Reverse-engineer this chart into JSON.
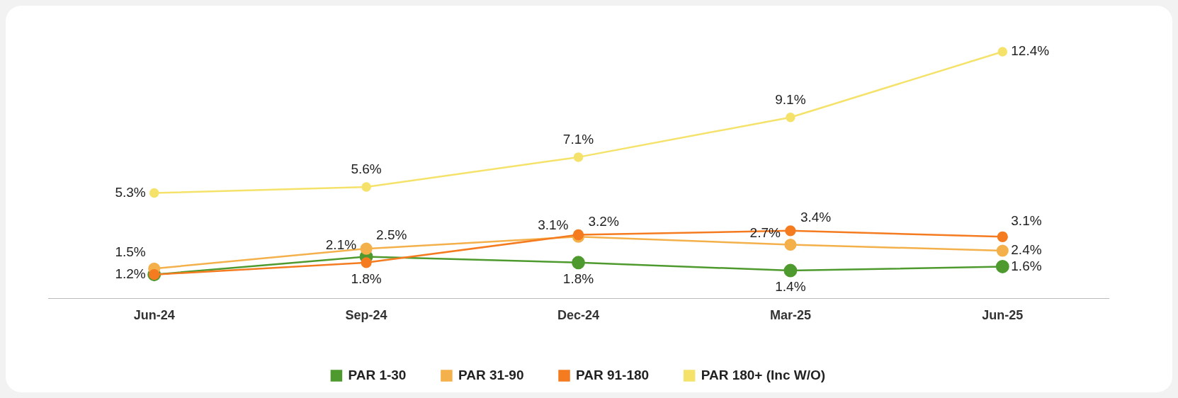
{
  "chart_data": {
    "type": "line",
    "categories": [
      "Jun-24",
      "Sep-24",
      "Dec-24",
      "Mar-25",
      "Jun-25"
    ],
    "series": [
      {
        "name": "PAR 1-30",
        "color": "#4e9a2f",
        "values": [
          1.2,
          2.1,
          1.8,
          1.4,
          1.6
        ],
        "value_labels": [
          "1.2%",
          "2.1%",
          "1.8%",
          "1.4%",
          "1.6%"
        ]
      },
      {
        "name": "PAR 31-90",
        "color": "#f4b04a",
        "values": [
          1.5,
          2.5,
          3.1,
          2.7,
          2.4
        ],
        "value_labels": [
          "1.5%",
          "2.5%",
          "3.1%",
          "2.7%",
          "2.4%"
        ]
      },
      {
        "name": "PAR 91-180",
        "color": "#f47b20",
        "values": [
          1.2,
          1.8,
          3.2,
          3.4,
          3.1
        ],
        "value_labels": [
          null,
          "1.8%",
          "3.2%",
          "3.4%",
          "3.1%"
        ]
      },
      {
        "name": "PAR 180+ (Inc W/O)",
        "color": "#f5e26a",
        "values": [
          5.3,
          5.6,
          7.1,
          9.1,
          12.4
        ],
        "value_labels": [
          "5.3%",
          "5.6%",
          "7.1%",
          "9.1%",
          "12.4%"
        ]
      }
    ],
    "tick_labels": "x",
    "legend": "bottom",
    "marker": "circle",
    "grid": false
  }
}
